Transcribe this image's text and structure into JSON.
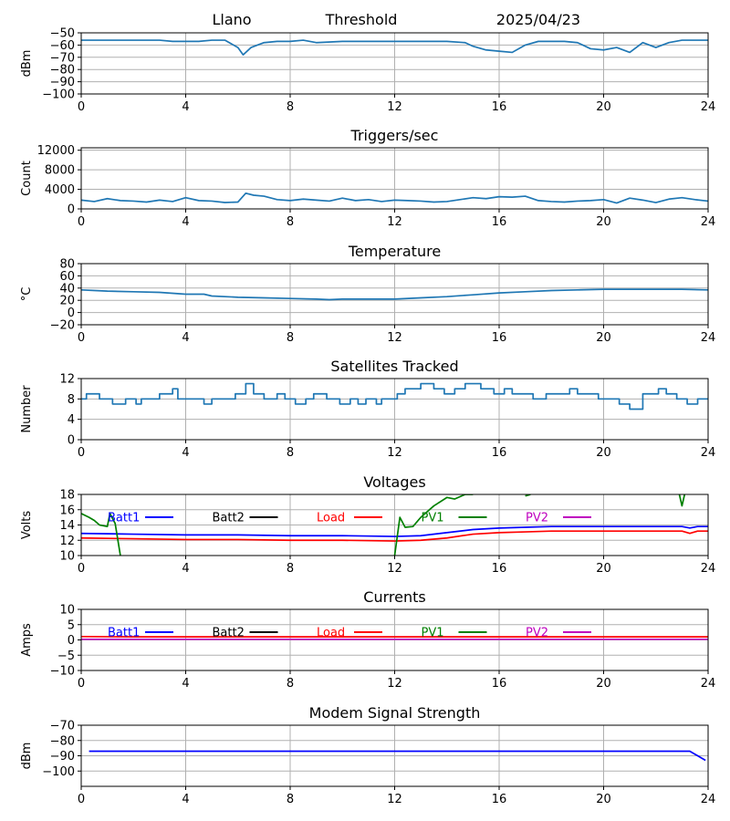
{
  "header": {
    "station": "Llano",
    "label": "Threshold",
    "date": "2025/04/23"
  },
  "colors": {
    "default_series": "#1f77b4",
    "batt1": "#0000ff",
    "batt2": "#000000",
    "load": "#ff0000",
    "pv1": "#008000",
    "pv2": "#bf00bf",
    "grid": "#b0b0b0"
  },
  "chart_data": [
    {
      "id": "threshold",
      "type": "line",
      "title": "",
      "ylabel": "dBm",
      "xlim": [
        0,
        24
      ],
      "ylim": [
        -100,
        -50
      ],
      "yticks": [
        -50,
        -60,
        -70,
        -80,
        -90,
        -100
      ],
      "xticks": [
        0,
        4,
        8,
        12,
        16,
        20,
        24
      ],
      "grid": true,
      "series": [
        {
          "color": "#1f77b4",
          "x": [
            0,
            1,
            2,
            3,
            3.5,
            4,
            4.5,
            5,
            5.5,
            6,
            6.2,
            6.5,
            7,
            7.5,
            8,
            8.5,
            9,
            10,
            11,
            12,
            13,
            14,
            14.7,
            15,
            15.5,
            16,
            16.5,
            17,
            17.5,
            18,
            18.5,
            19,
            19.5,
            20,
            20.5,
            21,
            21.5,
            22,
            22.5,
            23,
            23.5,
            24
          ],
          "y": [
            -56,
            -56,
            -56,
            -56,
            -57,
            -57,
            -57,
            -56,
            -56,
            -62,
            -68,
            -62,
            -58,
            -57,
            -57,
            -56,
            -58,
            -57,
            -57,
            -57,
            -57,
            -57,
            -58,
            -61,
            -64,
            -65,
            -66,
            -60,
            -57,
            -57,
            -57,
            -58,
            -63,
            -64,
            -62,
            -66,
            -58,
            -62,
            -58,
            -56,
            -56,
            -56
          ]
        }
      ]
    },
    {
      "id": "triggers",
      "type": "line",
      "title": "Triggers/sec",
      "ylabel": "Count",
      "xlim": [
        0,
        24
      ],
      "ylim": [
        0,
        12500
      ],
      "yticks": [
        0,
        4000,
        8000,
        12000
      ],
      "xticks": [
        0,
        4,
        8,
        12,
        16,
        20,
        24
      ],
      "grid": true,
      "series": [
        {
          "color": "#1f77b4",
          "x": [
            0,
            0.5,
            1,
            1.5,
            2,
            2.5,
            3,
            3.5,
            4,
            4.5,
            5,
            5.5,
            6,
            6.3,
            6.6,
            7,
            7.5,
            8,
            8.5,
            9,
            9.5,
            10,
            10.5,
            11,
            11.5,
            12,
            12.5,
            13,
            13.5,
            14,
            14.5,
            15,
            15.5,
            16,
            16.5,
            17,
            17.5,
            18,
            18.5,
            19,
            19.5,
            20,
            20.5,
            21,
            21.5,
            22,
            22.5,
            23,
            23.5,
            24
          ],
          "y": [
            1800,
            1500,
            2100,
            1700,
            1600,
            1400,
            1800,
            1500,
            2300,
            1700,
            1600,
            1300,
            1400,
            3200,
            2800,
            2600,
            1900,
            1700,
            2000,
            1800,
            1600,
            2200,
            1700,
            1900,
            1500,
            1800,
            1700,
            1600,
            1400,
            1500,
            1900,
            2300,
            2100,
            2500,
            2400,
            2600,
            1700,
            1500,
            1400,
            1600,
            1700,
            1900,
            1200,
            2200,
            1800,
            1300,
            2000,
            2300,
            1900,
            1600
          ]
        }
      ]
    },
    {
      "id": "temperature",
      "type": "line",
      "title": "Temperature",
      "ylabel": "°C",
      "xlim": [
        0,
        24
      ],
      "ylim": [
        -20,
        80
      ],
      "yticks": [
        -20,
        0,
        20,
        40,
        60,
        80
      ],
      "xticks": [
        0,
        4,
        8,
        12,
        16,
        20,
        24
      ],
      "grid": true,
      "series": [
        {
          "color": "#1f77b4",
          "x": [
            0,
            1,
            2,
            3,
            4,
            4.7,
            5,
            6,
            7,
            8,
            9,
            9.5,
            10,
            11,
            12,
            13,
            14,
            15,
            16,
            17,
            18,
            19,
            20,
            21,
            22,
            23,
            24
          ],
          "y": [
            37,
            35,
            34,
            33,
            30,
            30,
            27,
            25,
            24,
            23,
            22,
            21,
            22,
            22,
            22,
            24,
            26,
            29,
            32,
            34,
            36,
            37,
            38,
            38,
            38,
            38,
            37
          ]
        }
      ]
    },
    {
      "id": "satellites",
      "type": "line",
      "title": "Satellites Tracked",
      "ylabel": "Number",
      "xlim": [
        0,
        24
      ],
      "ylim": [
        0,
        12
      ],
      "yticks": [
        0,
        4,
        8,
        12
      ],
      "xticks": [
        0,
        4,
        8,
        12,
        16,
        20,
        24
      ],
      "grid": true,
      "series": [
        {
          "color": "#1f77b4",
          "step": true,
          "x": [
            0,
            0.2,
            0.7,
            1.2,
            1.7,
            2.1,
            2.3,
            2.5,
            3.0,
            3.5,
            3.7,
            4.0,
            4.7,
            5.0,
            5.9,
            6.3,
            6.6,
            7.0,
            7.5,
            7.8,
            8.2,
            8.6,
            8.9,
            9.4,
            9.9,
            10.3,
            10.6,
            10.9,
            11.3,
            11.5,
            11.9,
            12.1,
            12.4,
            13.0,
            13.5,
            13.9,
            14.3,
            14.7,
            15.3,
            15.8,
            16.2,
            16.5,
            16.8,
            17.3,
            17.8,
            18.4,
            18.7,
            19.0,
            19.8,
            20.3,
            20.6,
            21.0,
            21.5,
            22.1,
            22.4,
            22.8,
            23.2,
            23.6,
            24
          ],
          "y": [
            8,
            9,
            8,
            7,
            8,
            7,
            8,
            8,
            9,
            10,
            8,
            8,
            7,
            8,
            9,
            11,
            9,
            8,
            9,
            8,
            7,
            8,
            9,
            8,
            7,
            8,
            7,
            8,
            7,
            8,
            8,
            9,
            10,
            11,
            10,
            9,
            10,
            11,
            10,
            9,
            10,
            9,
            9,
            8,
            9,
            9,
            10,
            9,
            8,
            8,
            7,
            6,
            9,
            10,
            9,
            8,
            7,
            8,
            8
          ]
        }
      ]
    },
    {
      "id": "voltages",
      "type": "line",
      "title": "Voltages",
      "ylabel": "Volts",
      "xlim": [
        0,
        24
      ],
      "ylim": [
        10,
        18
      ],
      "yticks": [
        10,
        12,
        14,
        16,
        18
      ],
      "xticks": [
        0,
        4,
        8,
        12,
        16,
        20,
        24
      ],
      "grid": true,
      "legend": "top",
      "series": [
        {
          "name": "Batt1",
          "color": "#0000ff",
          "x": [
            0,
            2,
            4,
            6,
            8,
            10,
            12,
            13,
            14,
            15,
            16,
            17,
            18,
            20,
            23,
            23.3,
            23.6,
            24
          ],
          "y": [
            12.9,
            12.8,
            12.7,
            12.7,
            12.6,
            12.6,
            12.5,
            12.6,
            13.0,
            13.4,
            13.6,
            13.7,
            13.8,
            13.8,
            13.8,
            13.6,
            13.8,
            13.8
          ]
        },
        {
          "name": "Batt2",
          "color": "#000000",
          "x": [],
          "y": []
        },
        {
          "name": "Load",
          "color": "#ff0000",
          "x": [
            0,
            2,
            4,
            6,
            8,
            10,
            12,
            13,
            14,
            15,
            16,
            17,
            18,
            20,
            23,
            23.3,
            23.6,
            24
          ],
          "y": [
            12.3,
            12.2,
            12.1,
            12.1,
            12.0,
            12.0,
            11.9,
            12.0,
            12.3,
            12.8,
            13.0,
            13.1,
            13.2,
            13.2,
            13.2,
            12.9,
            13.2,
            13.2
          ]
        },
        {
          "name": "PV1",
          "color": "#008000",
          "segments": [
            {
              "x": [
                0,
                0.3,
                0.5,
                0.7,
                1.0,
                1.1,
                1.3,
                1.5
              ],
              "y": [
                15.5,
                15.0,
                14.6,
                14.0,
                13.8,
                15.5,
                14.2,
                10.0
              ]
            },
            {
              "x": [
                12.0,
                12.2,
                12.4,
                12.7,
                13.0,
                13.5,
                14.0,
                14.3,
                14.7,
                15.0
              ],
              "y": [
                10.0,
                15.0,
                13.7,
                13.8,
                15.0,
                16.5,
                17.6,
                17.4,
                18.0,
                18.0
              ]
            },
            {
              "x": [
                17.0,
                17.2
              ],
              "y": [
                17.8,
                18.0
              ]
            },
            {
              "x": [
                22.9,
                23.0,
                23.1
              ],
              "y": [
                18.0,
                16.5,
                18.0
              ]
            }
          ]
        },
        {
          "name": "PV2",
          "color": "#bf00bf",
          "x": [],
          "y": []
        }
      ]
    },
    {
      "id": "currents",
      "type": "line",
      "title": "Currents",
      "ylabel": "Amps",
      "xlim": [
        0,
        24
      ],
      "ylim": [
        -10,
        10
      ],
      "yticks": [
        -10,
        -5,
        0,
        5,
        10
      ],
      "xticks": [
        0,
        4,
        8,
        12,
        16,
        20,
        24
      ],
      "grid": true,
      "legend": "top",
      "series": [
        {
          "name": "Batt1",
          "color": "#0000ff",
          "x": [],
          "y": []
        },
        {
          "name": "Batt2",
          "color": "#000000",
          "x": [],
          "y": []
        },
        {
          "name": "Load",
          "color": "#ff0000",
          "x": [
            0,
            2,
            4,
            6,
            8,
            10,
            12,
            14,
            16,
            18,
            20,
            22,
            24
          ],
          "y": [
            1.1,
            1.0,
            1.0,
            1.0,
            1.0,
            1.0,
            1.0,
            1.0,
            1.0,
            1.0,
            1.0,
            1.0,
            1.0
          ]
        },
        {
          "name": "PV1",
          "color": "#008000",
          "x": [],
          "y": []
        },
        {
          "name": "PV2",
          "color": "#bf00bf",
          "x": [
            0,
            24
          ],
          "y": [
            0.2,
            0.2
          ]
        }
      ]
    },
    {
      "id": "modem",
      "type": "line",
      "title": "Modem Signal Strength",
      "ylabel": "dBm",
      "xlim": [
        0,
        24
      ],
      "ylim": [
        -110,
        -70
      ],
      "yticks": [
        -70,
        -80,
        -90,
        -100
      ],
      "xticks": [
        0,
        4,
        8,
        12,
        16,
        20,
        24
      ],
      "grid": true,
      "series": [
        {
          "color": "#0000ff",
          "x": [
            0.3,
            23.3,
            23.9
          ],
          "y": [
            -87,
            -87,
            -93
          ]
        }
      ]
    }
  ]
}
